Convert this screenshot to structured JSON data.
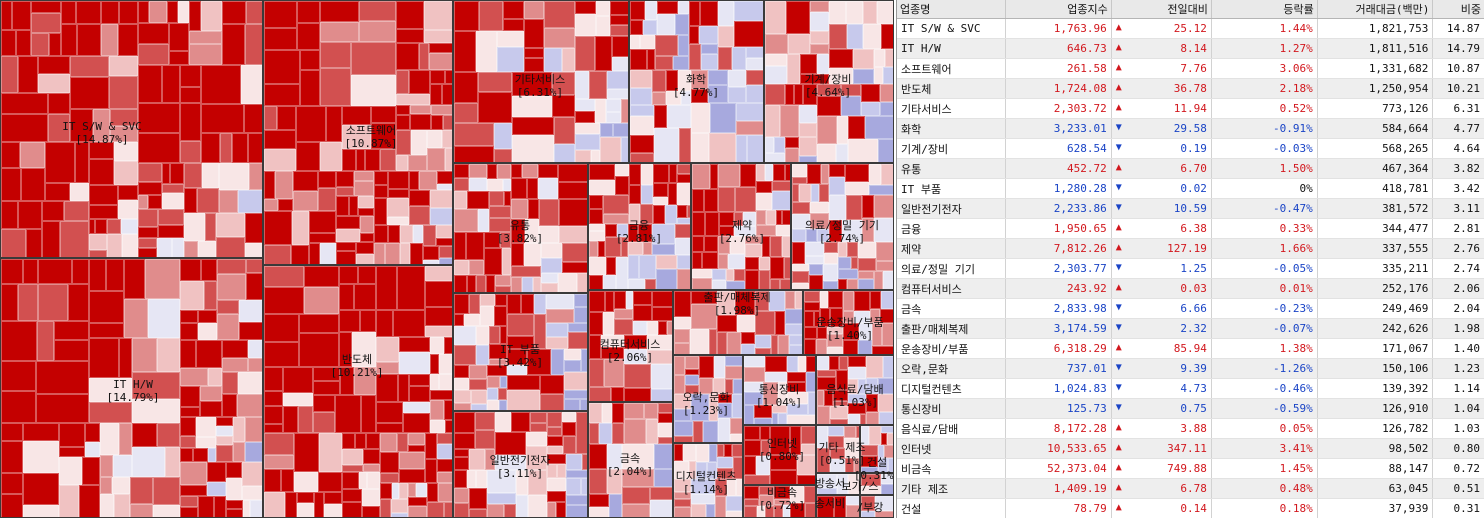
{
  "colors": {
    "up": "#d2181e",
    "down": "#1a44c6",
    "flat": "#111111"
  },
  "treemap": {
    "sectors": [
      {
        "name": "IT S/W & SVC",
        "weight": "[14.87%]"
      },
      {
        "name": "IT H/W",
        "weight": "[14.79%]"
      },
      {
        "name": "소프트웨어",
        "weight": "[10.87%]"
      },
      {
        "name": "반도체",
        "weight": "[10.21%]"
      },
      {
        "name": "기타서비스",
        "weight": "[6.31%]"
      },
      {
        "name": "화학",
        "weight": "[4.77%]"
      },
      {
        "name": "기계/장비",
        "weight": "[4.64%]"
      },
      {
        "name": "유통",
        "weight": "[3.82%]"
      },
      {
        "name": "금융",
        "weight": "[2.81%]"
      },
      {
        "name": "제약",
        "weight": "[2.76%]"
      },
      {
        "name": "의료/정밀 기기",
        "weight": "[2.74%]"
      },
      {
        "name": "IT 부품",
        "weight": "[3.42%]"
      },
      {
        "name": "컴퓨터서비스",
        "weight": "[2.06%]"
      },
      {
        "name": "출판/매체복제",
        "weight": "[1.98%]"
      },
      {
        "name": "운송장비/부품",
        "weight": "[1.40%]"
      },
      {
        "name": "일반전기전자",
        "weight": "[3.11%]"
      },
      {
        "name": "금속",
        "weight": "[2.04%]"
      },
      {
        "name": "오락,문화",
        "weight": "[1.23%]"
      },
      {
        "name": "통신장비",
        "weight": "[1.04%]"
      },
      {
        "name": "음식료/담배",
        "weight": "[1.03%]"
      },
      {
        "name": "인터넷",
        "weight": "[0.80%]"
      },
      {
        "name": "기타 제조",
        "weight": "[0.51%]"
      },
      {
        "name": "건설",
        "weight": "[0.31%]"
      },
      {
        "name": "디지털컨텐츠",
        "weight": "[1.14%]"
      },
      {
        "name": "비금속",
        "weight": "[0.72%]"
      },
      {
        "name": "방송서",
        "weight": ""
      },
      {
        "name": "보가/스",
        "weight": ""
      },
      {
        "name": "송서비",
        "weight": ""
      },
      {
        "name": "/부강",
        "weight": ""
      }
    ]
  },
  "table": {
    "headers": [
      "업종명",
      "업종지수",
      "전일대비",
      "등락률",
      "거래대금(백만)",
      "비중"
    ],
    "rows": [
      {
        "name": "IT S/W & SVC",
        "index": "1,763.96",
        "dir": "up",
        "change": "25.12",
        "rate": "1.44%",
        "volume": "1,821,753",
        "weight": "14.87"
      },
      {
        "name": "IT H/W",
        "index": "646.73",
        "dir": "up",
        "change": "8.14",
        "rate": "1.27%",
        "volume": "1,811,516",
        "weight": "14.79"
      },
      {
        "name": "소프트웨어",
        "index": "261.58",
        "dir": "up",
        "change": "7.76",
        "rate": "3.06%",
        "volume": "1,331,682",
        "weight": "10.87"
      },
      {
        "name": "반도체",
        "index": "1,724.08",
        "dir": "up",
        "change": "36.78",
        "rate": "2.18%",
        "volume": "1,250,954",
        "weight": "10.21"
      },
      {
        "name": "기타서비스",
        "index": "2,303.72",
        "dir": "up",
        "change": "11.94",
        "rate": "0.52%",
        "volume": "773,126",
        "weight": "6.31"
      },
      {
        "name": "화학",
        "index": "3,233.01",
        "dir": "down",
        "change": "29.58",
        "rate": "-0.91%",
        "volume": "584,664",
        "weight": "4.77"
      },
      {
        "name": "기계/장비",
        "index": "628.54",
        "dir": "down",
        "change": "0.19",
        "rate": "-0.03%",
        "volume": "568,265",
        "weight": "4.64"
      },
      {
        "name": "유통",
        "index": "452.72",
        "dir": "up",
        "change": "6.70",
        "rate": "1.50%",
        "volume": "467,364",
        "weight": "3.82"
      },
      {
        "name": "IT 부품",
        "index": "1,280.28",
        "dir": "down",
        "change": "0.02",
        "rate": "0%",
        "volume": "418,781",
        "weight": "3.42"
      },
      {
        "name": "일반전기전자",
        "index": "2,233.86",
        "dir": "down",
        "change": "10.59",
        "rate": "-0.47%",
        "volume": "381,572",
        "weight": "3.11"
      },
      {
        "name": "금융",
        "index": "1,950.65",
        "dir": "up",
        "change": "6.38",
        "rate": "0.33%",
        "volume": "344,477",
        "weight": "2.81"
      },
      {
        "name": "제약",
        "index": "7,812.26",
        "dir": "up",
        "change": "127.19",
        "rate": "1.66%",
        "volume": "337,555",
        "weight": "2.76"
      },
      {
        "name": "의료/정밀 기기",
        "index": "2,303.77",
        "dir": "down",
        "change": "1.25",
        "rate": "-0.05%",
        "volume": "335,211",
        "weight": "2.74"
      },
      {
        "name": "컴퓨터서비스",
        "index": "243.92",
        "dir": "up",
        "change": "0.03",
        "rate": "0.01%",
        "volume": "252,176",
        "weight": "2.06"
      },
      {
        "name": "금속",
        "index": "2,833.98",
        "dir": "down",
        "change": "6.66",
        "rate": "-0.23%",
        "volume": "249,469",
        "weight": "2.04"
      },
      {
        "name": "출판/매체복제",
        "index": "3,174.59",
        "dir": "down",
        "change": "2.32",
        "rate": "-0.07%",
        "volume": "242,626",
        "weight": "1.98"
      },
      {
        "name": "운송장비/부품",
        "index": "6,318.29",
        "dir": "up",
        "change": "85.94",
        "rate": "1.38%",
        "volume": "171,067",
        "weight": "1.40"
      },
      {
        "name": "오락,문화",
        "index": "737.01",
        "dir": "down",
        "change": "9.39",
        "rate": "-1.26%",
        "volume": "150,106",
        "weight": "1.23"
      },
      {
        "name": "디지털컨텐츠",
        "index": "1,024.83",
        "dir": "down",
        "change": "4.73",
        "rate": "-0.46%",
        "volume": "139,392",
        "weight": "1.14"
      },
      {
        "name": "통신장비",
        "index": "125.73",
        "dir": "down",
        "change": "0.75",
        "rate": "-0.59%",
        "volume": "126,910",
        "weight": "1.04"
      },
      {
        "name": "음식료/담배",
        "index": "8,172.28",
        "dir": "up",
        "change": "3.88",
        "rate": "0.05%",
        "volume": "126,782",
        "weight": "1.03"
      },
      {
        "name": "인터넷",
        "index": "10,533.65",
        "dir": "up",
        "change": "347.11",
        "rate": "3.41%",
        "volume": "98,502",
        "weight": "0.80"
      },
      {
        "name": "비금속",
        "index": "52,373.04",
        "dir": "up",
        "change": "749.88",
        "rate": "1.45%",
        "volume": "88,147",
        "weight": "0.72"
      },
      {
        "name": "기타 제조",
        "index": "1,409.19",
        "dir": "up",
        "change": "6.78",
        "rate": "0.48%",
        "volume": "63,045",
        "weight": "0.51"
      },
      {
        "name": "건설",
        "index": "78.79",
        "dir": "up",
        "change": "0.14",
        "rate": "0.18%",
        "volume": "37,939",
        "weight": "0.31"
      }
    ]
  }
}
